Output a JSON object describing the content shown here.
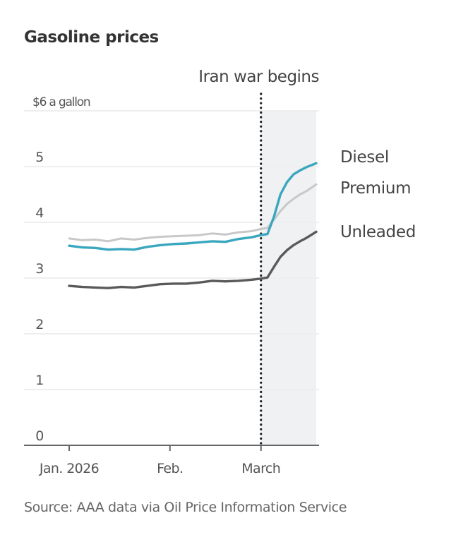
{
  "chart_data": {
    "type": "line",
    "title": "Gasoline prices",
    "ylabel": "$6 a gallon",
    "xlabel": "",
    "source": "Source: AAA data via Oil Price Information Service",
    "ylim": [
      0,
      6
    ],
    "yticks": [
      0,
      1,
      2,
      3,
      4,
      5,
      6
    ],
    "ytick_labels": [
      "0",
      "1",
      "2",
      "3",
      "4",
      "5",
      "$6 a gallon"
    ],
    "xlim": [
      0,
      76
    ],
    "xticks": [
      {
        "day": 0,
        "label": "Jan. 2026"
      },
      {
        "day": 31,
        "label": "Feb."
      },
      {
        "day": 59,
        "label": "March"
      }
    ],
    "grid": true,
    "annotation": {
      "label": "Iran war begins",
      "day": 59,
      "style": "dotted-line",
      "shaded_after": true
    },
    "colors": {
      "Diesel": "#3aa7bf",
      "Premium": "#c8c8c8",
      "Unleaded": "#5a5a5a",
      "shade": "#f0f1f3",
      "grid": "#eeeeee",
      "axis": "#666666"
    },
    "x": [
      0,
      4,
      8,
      12,
      16,
      20,
      24,
      28,
      32,
      36,
      40,
      44,
      48,
      52,
      56,
      59,
      61,
      63,
      65,
      67,
      69,
      71,
      73,
      76
    ],
    "series": [
      {
        "name": "Premium",
        "values": [
          3.71,
          3.68,
          3.69,
          3.66,
          3.71,
          3.69,
          3.72,
          3.74,
          3.75,
          3.76,
          3.77,
          3.8,
          3.78,
          3.82,
          3.84,
          3.88,
          3.9,
          4.05,
          4.2,
          4.33,
          4.42,
          4.5,
          4.56,
          4.68
        ]
      },
      {
        "name": "Diesel",
        "values": [
          3.58,
          3.55,
          3.54,
          3.51,
          3.52,
          3.51,
          3.56,
          3.59,
          3.61,
          3.62,
          3.64,
          3.66,
          3.65,
          3.7,
          3.73,
          3.77,
          3.79,
          4.1,
          4.5,
          4.72,
          4.86,
          4.93,
          4.99,
          5.06
        ]
      },
      {
        "name": "Unleaded",
        "values": [
          2.86,
          2.84,
          2.83,
          2.82,
          2.84,
          2.83,
          2.86,
          2.89,
          2.9,
          2.9,
          2.92,
          2.95,
          2.94,
          2.95,
          2.97,
          2.99,
          3.01,
          3.2,
          3.38,
          3.5,
          3.59,
          3.66,
          3.72,
          3.83
        ]
      }
    ],
    "legend": [
      {
        "name": "Diesel",
        "placement": "right"
      },
      {
        "name": "Premium",
        "placement": "right"
      },
      {
        "name": "Unleaded",
        "placement": "right"
      }
    ]
  }
}
